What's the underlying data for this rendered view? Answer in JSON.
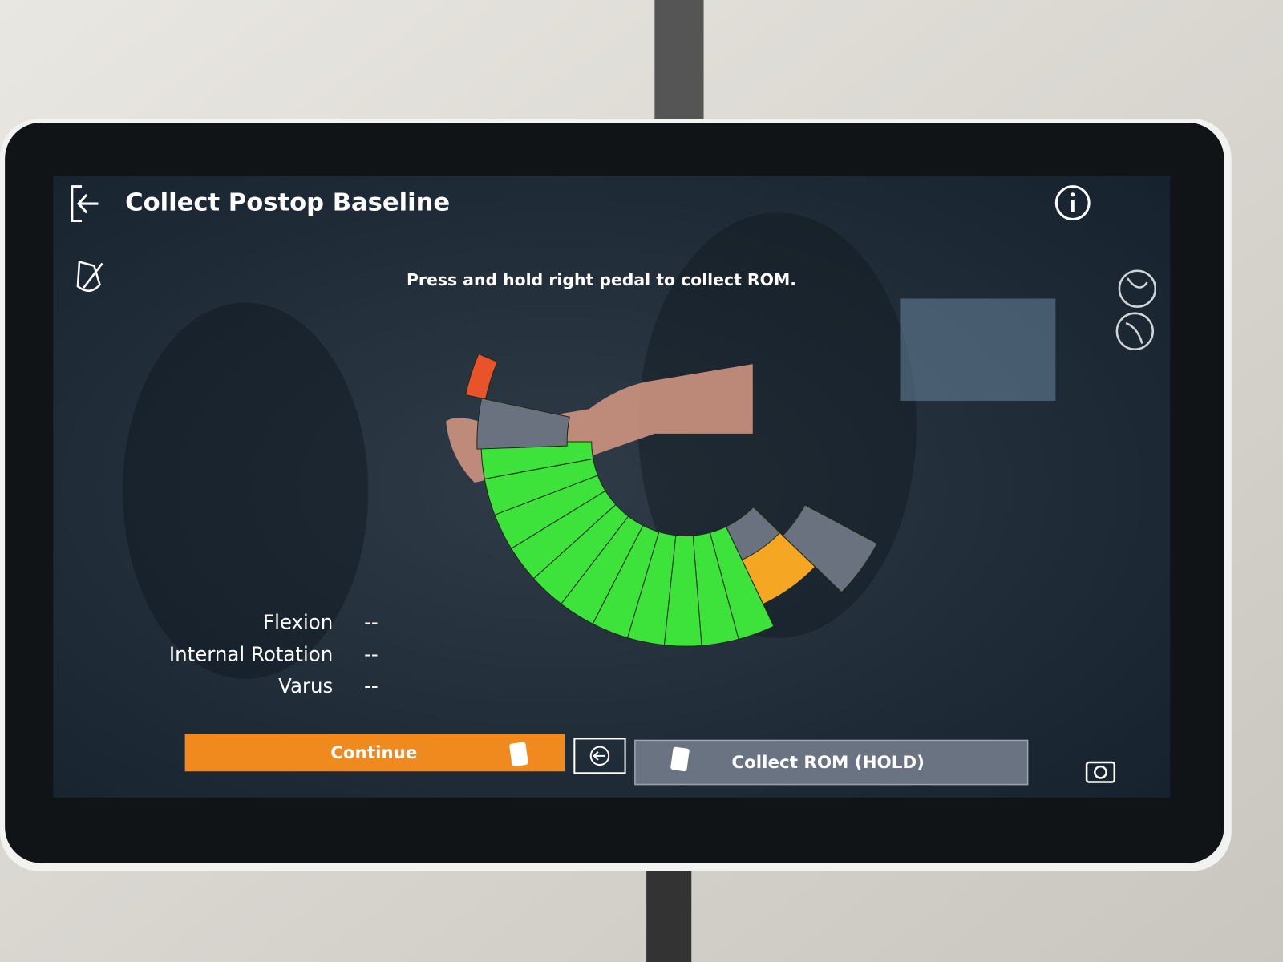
{
  "header": {
    "title": "Collect Postop Baseline"
  },
  "instruction": "Press and hold right pedal to collect ROM.",
  "measurements": [
    {
      "label": "Flexion",
      "value": "--"
    },
    {
      "label": "Internal Rotation",
      "value": "--"
    },
    {
      "label": "Varus",
      "value": "--"
    }
  ],
  "buttons": {
    "continue": "Continue",
    "collect": "Collect ROM (HOLD)"
  }
}
